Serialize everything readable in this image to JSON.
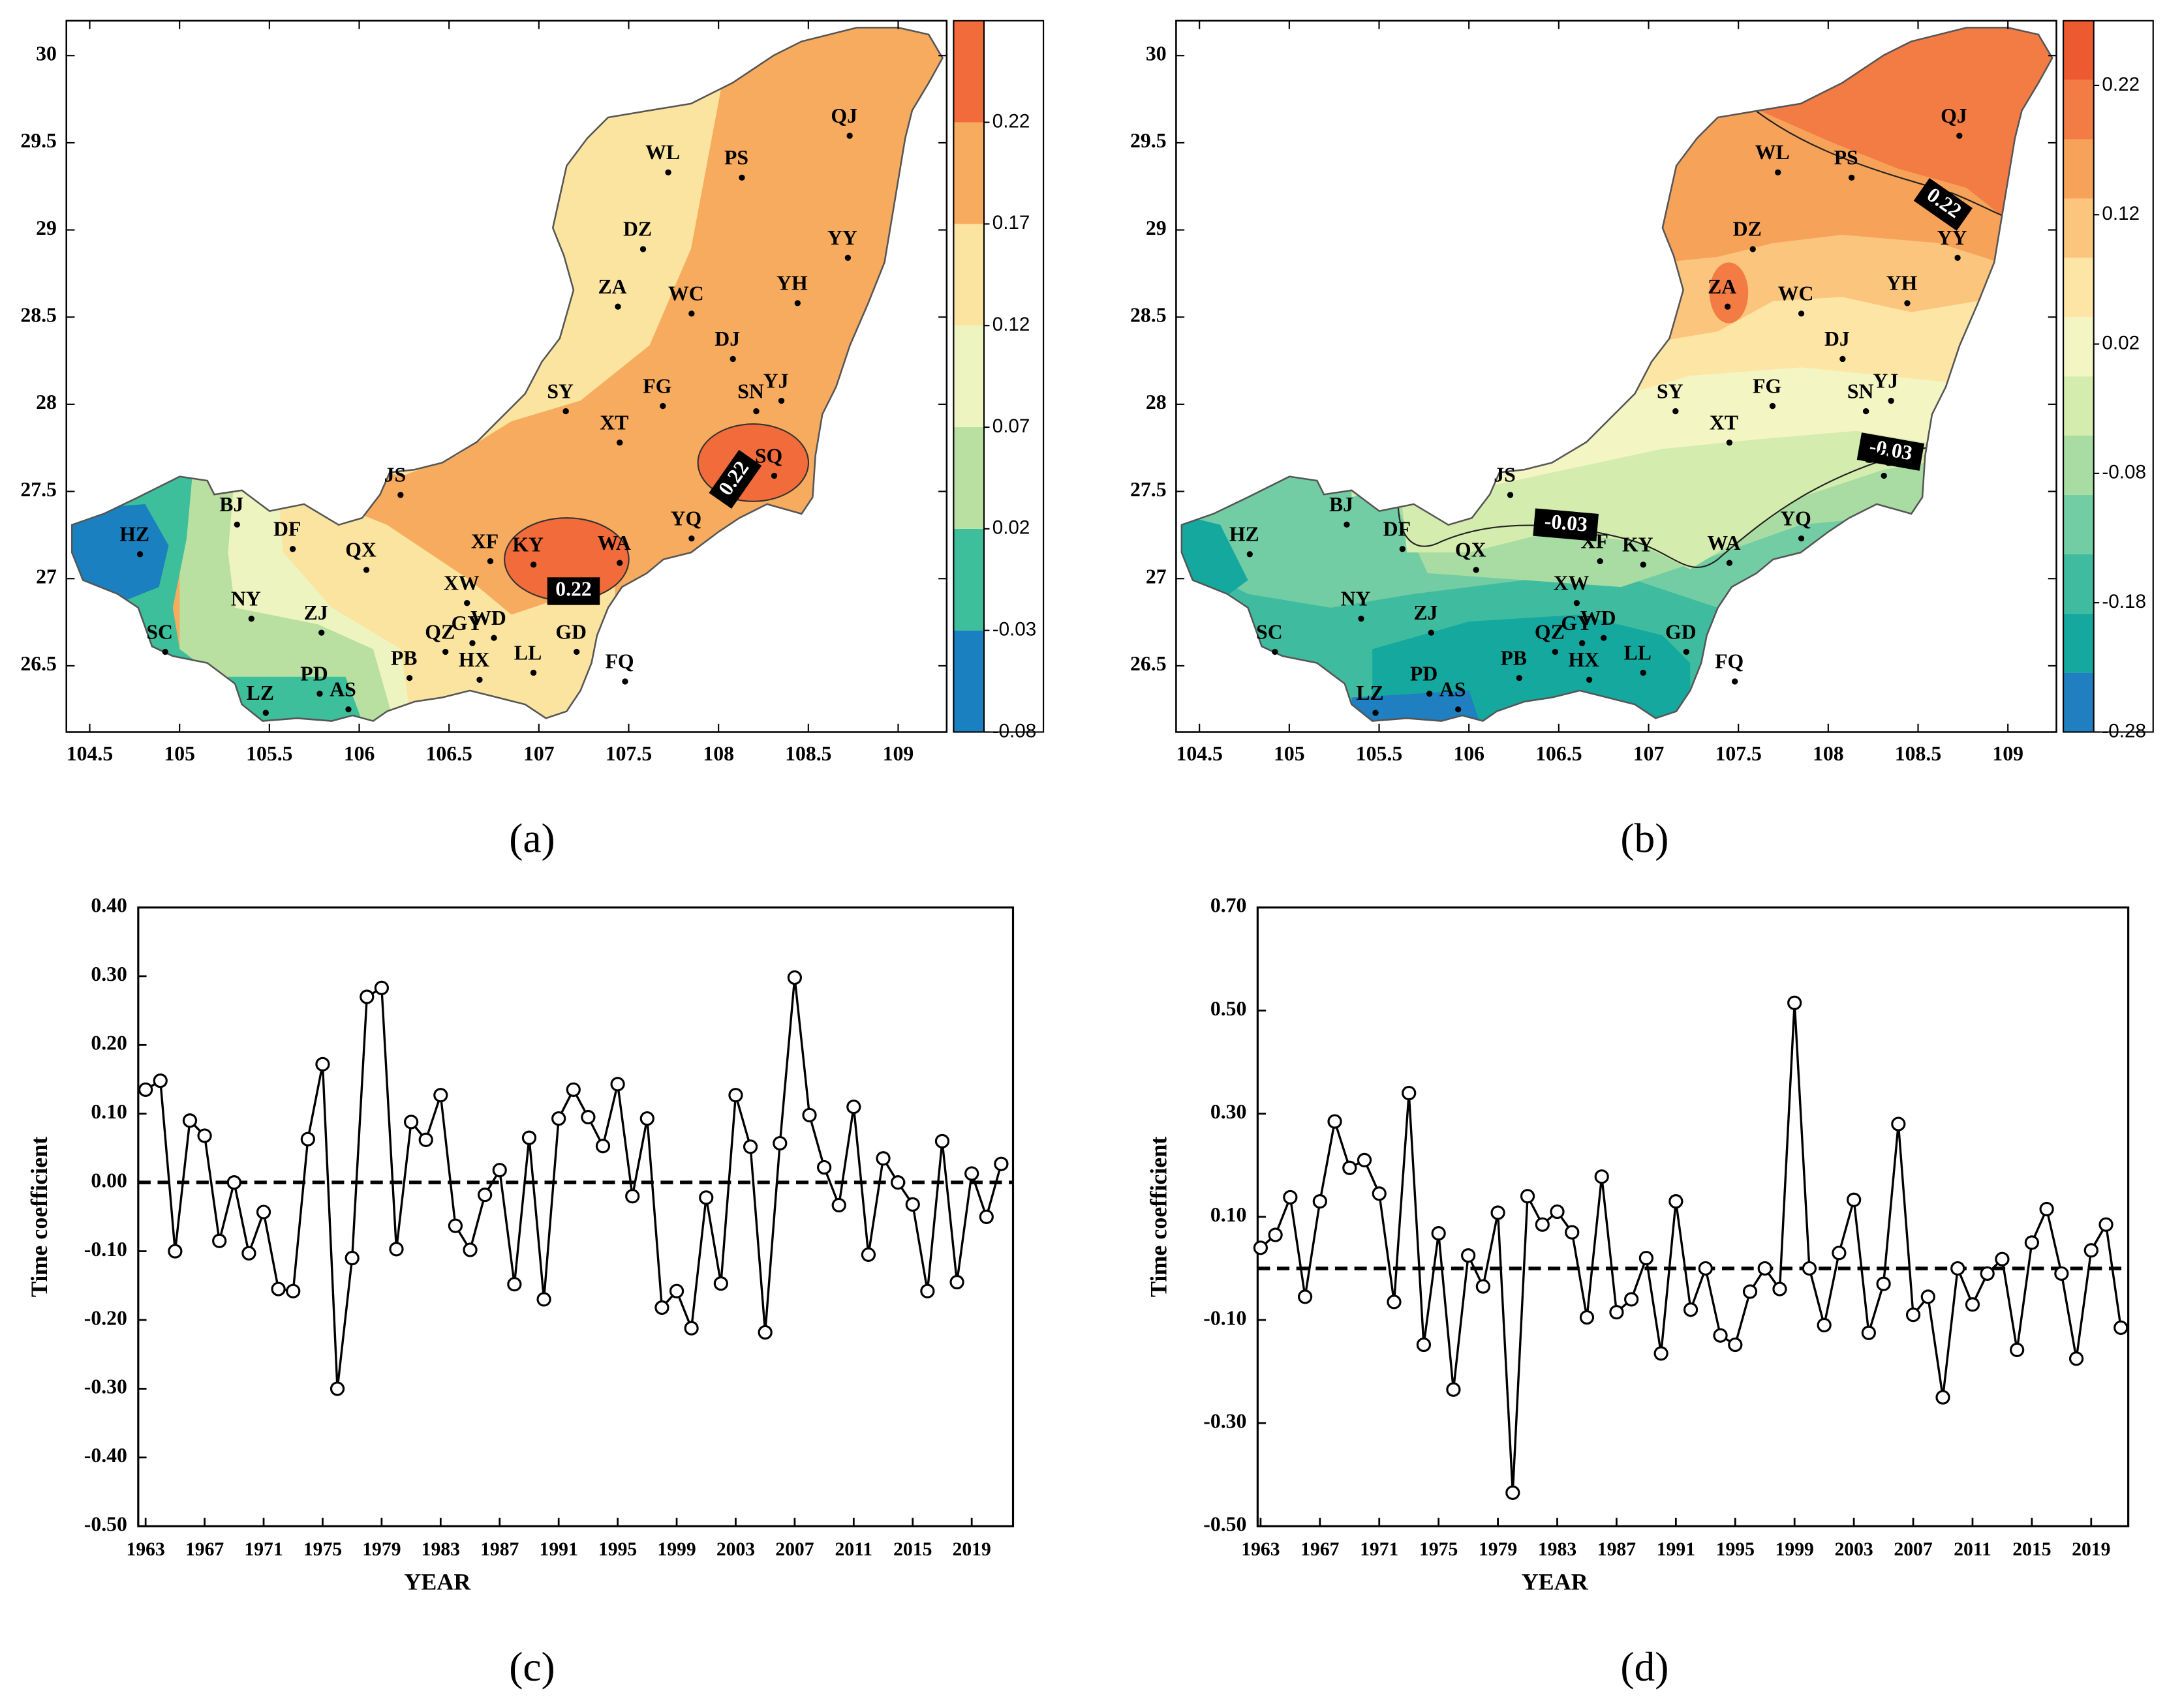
{
  "chart_data": [
    {
      "type": "map",
      "label": "(a)",
      "xlim": [
        104.37,
        109.27
      ],
      "ylim": [
        26.12,
        30.2
      ],
      "xticks": [
        104.5,
        105,
        105.5,
        106,
        106.5,
        107,
        107.5,
        108,
        108.5,
        109
      ],
      "yticks": [
        26.5,
        27,
        27.5,
        28,
        28.5,
        29,
        29.5,
        30
      ],
      "stations": [
        {
          "name": "HZ",
          "lon": 104.78,
          "lat": 27.14
        },
        {
          "name": "BJ",
          "lon": 105.32,
          "lat": 27.31
        },
        {
          "name": "DF",
          "lon": 105.63,
          "lat": 27.17
        },
        {
          "name": "SC",
          "lon": 104.92,
          "lat": 26.58
        },
        {
          "name": "NY",
          "lon": 105.4,
          "lat": 26.77
        },
        {
          "name": "ZJ",
          "lon": 105.79,
          "lat": 26.69
        },
        {
          "name": "LZ",
          "lon": 105.48,
          "lat": 26.23
        },
        {
          "name": "PD",
          "lon": 105.78,
          "lat": 26.34
        },
        {
          "name": "AS",
          "lon": 105.94,
          "lat": 26.25
        },
        {
          "name": "QX",
          "lon": 106.04,
          "lat": 27.05
        },
        {
          "name": "JS",
          "lon": 106.23,
          "lat": 27.48
        },
        {
          "name": "PB",
          "lon": 106.28,
          "lat": 26.43
        },
        {
          "name": "QZ",
          "lon": 106.48,
          "lat": 26.58
        },
        {
          "name": "GY",
          "lon": 106.63,
          "lat": 26.63
        },
        {
          "name": "WD",
          "lon": 106.75,
          "lat": 26.66
        },
        {
          "name": "XW",
          "lon": 106.6,
          "lat": 26.86
        },
        {
          "name": "HX",
          "lon": 106.67,
          "lat": 26.42
        },
        {
          "name": "LL",
          "lon": 106.97,
          "lat": 26.46
        },
        {
          "name": "XF",
          "lon": 106.73,
          "lat": 27.1
        },
        {
          "name": "KY",
          "lon": 106.97,
          "lat": 27.08
        },
        {
          "name": "WA",
          "lon": 107.45,
          "lat": 27.09
        },
        {
          "name": "GD",
          "lon": 107.21,
          "lat": 26.58
        },
        {
          "name": "FQ",
          "lon": 107.48,
          "lat": 26.41
        },
        {
          "name": "YQ",
          "lon": 107.85,
          "lat": 27.23
        },
        {
          "name": "XT",
          "lon": 107.45,
          "lat": 27.78
        },
        {
          "name": "SY",
          "lon": 107.15,
          "lat": 27.96
        },
        {
          "name": "FG",
          "lon": 107.69,
          "lat": 27.99
        },
        {
          "name": "SN",
          "lon": 108.21,
          "lat": 27.96
        },
        {
          "name": "YJ",
          "lon": 108.35,
          "lat": 28.02
        },
        {
          "name": "SQ",
          "lon": 108.31,
          "lat": 27.59
        },
        {
          "name": "DJ",
          "lon": 108.08,
          "lat": 28.26
        },
        {
          "name": "ZA",
          "lon": 107.44,
          "lat": 28.56
        },
        {
          "name": "WC",
          "lon": 107.85,
          "lat": 28.52
        },
        {
          "name": "YH",
          "lon": 108.44,
          "lat": 28.58
        },
        {
          "name": "DZ",
          "lon": 107.58,
          "lat": 28.89
        },
        {
          "name": "YY",
          "lon": 108.72,
          "lat": 28.84
        },
        {
          "name": "WL",
          "lon": 107.72,
          "lat": 29.33
        },
        {
          "name": "PS",
          "lon": 108.13,
          "lat": 29.3
        },
        {
          "name": "QJ",
          "lon": 108.73,
          "lat": 29.54
        }
      ],
      "contour_labels": [
        0.22,
        0.22
      ],
      "colorbar": {
        "lim": [
          -0.08,
          0.27
        ],
        "ticks": [
          -0.08,
          -0.03,
          0.02,
          0.07,
          0.12,
          0.17,
          0.22
        ],
        "colors": [
          "#1a80bf",
          "#3cbf9a",
          "#b9e0a0",
          "#eef4c0",
          "#fbe4a0",
          "#f7ab5e",
          "#f26b3a"
        ]
      }
    },
    {
      "type": "map",
      "label": "(b)",
      "xlim": [
        104.37,
        109.27
      ],
      "ylim": [
        26.12,
        30.2
      ],
      "xticks": [
        104.5,
        105,
        105.5,
        106,
        106.5,
        107,
        107.5,
        108,
        108.5,
        109
      ],
      "yticks": [
        26.5,
        27,
        27.5,
        28,
        28.5,
        29,
        29.5,
        30
      ],
      "stations": [
        {
          "name": "HZ",
          "lon": 104.78,
          "lat": 27.14
        },
        {
          "name": "BJ",
          "lon": 105.32,
          "lat": 27.31
        },
        {
          "name": "DF",
          "lon": 105.63,
          "lat": 27.17
        },
        {
          "name": "SC",
          "lon": 104.92,
          "lat": 26.58
        },
        {
          "name": "NY",
          "lon": 105.4,
          "lat": 26.77
        },
        {
          "name": "ZJ",
          "lon": 105.79,
          "lat": 26.69
        },
        {
          "name": "LZ",
          "lon": 105.48,
          "lat": 26.23
        },
        {
          "name": "PD",
          "lon": 105.78,
          "lat": 26.34
        },
        {
          "name": "AS",
          "lon": 105.94,
          "lat": 26.25
        },
        {
          "name": "QX",
          "lon": 106.04,
          "lat": 27.05
        },
        {
          "name": "JS",
          "lon": 106.23,
          "lat": 27.48
        },
        {
          "name": "PB",
          "lon": 106.28,
          "lat": 26.43
        },
        {
          "name": "QZ",
          "lon": 106.48,
          "lat": 26.58
        },
        {
          "name": "GY",
          "lon": 106.63,
          "lat": 26.63
        },
        {
          "name": "WD",
          "lon": 106.75,
          "lat": 26.66
        },
        {
          "name": "XW",
          "lon": 106.6,
          "lat": 26.86
        },
        {
          "name": "HX",
          "lon": 106.67,
          "lat": 26.42
        },
        {
          "name": "LL",
          "lon": 106.97,
          "lat": 26.46
        },
        {
          "name": "XF",
          "lon": 106.73,
          "lat": 27.1
        },
        {
          "name": "KY",
          "lon": 106.97,
          "lat": 27.08
        },
        {
          "name": "WA",
          "lon": 107.45,
          "lat": 27.09
        },
        {
          "name": "GD",
          "lon": 107.21,
          "lat": 26.58
        },
        {
          "name": "FQ",
          "lon": 107.48,
          "lat": 26.41
        },
        {
          "name": "YQ",
          "lon": 107.85,
          "lat": 27.23
        },
        {
          "name": "XT",
          "lon": 107.45,
          "lat": 27.78
        },
        {
          "name": "SY",
          "lon": 107.15,
          "lat": 27.96
        },
        {
          "name": "FG",
          "lon": 107.69,
          "lat": 27.99
        },
        {
          "name": "SN",
          "lon": 108.21,
          "lat": 27.96
        },
        {
          "name": "YJ",
          "lon": 108.35,
          "lat": 28.02
        },
        {
          "name": "SQ",
          "lon": 108.31,
          "lat": 27.59
        },
        {
          "name": "DJ",
          "lon": 108.08,
          "lat": 28.26
        },
        {
          "name": "ZA",
          "lon": 107.44,
          "lat": 28.56
        },
        {
          "name": "WC",
          "lon": 107.85,
          "lat": 28.52
        },
        {
          "name": "YH",
          "lon": 108.44,
          "lat": 28.58
        },
        {
          "name": "DZ",
          "lon": 107.58,
          "lat": 28.89
        },
        {
          "name": "YY",
          "lon": 108.72,
          "lat": 28.84
        },
        {
          "name": "WL",
          "lon": 107.72,
          "lat": 29.33
        },
        {
          "name": "PS",
          "lon": 108.13,
          "lat": 29.3
        },
        {
          "name": "QJ",
          "lon": 108.73,
          "lat": 29.54
        }
      ],
      "contour_labels": [
        0.22,
        -0.03,
        -0.03
      ],
      "colorbar": {
        "lim": [
          -0.28,
          0.27
        ],
        "ticks": [
          -0.28,
          -0.18,
          -0.08,
          0.02,
          0.12,
          0.22
        ],
        "colors": [
          "#1f7fc0",
          "#14a89e",
          "#3fbc9f",
          "#72cda4",
          "#a8dca2",
          "#d4ecad",
          "#f3f5c3",
          "#fde6a5",
          "#fbc57d",
          "#f7a259",
          "#f37b44",
          "#ee5a30"
        ]
      }
    },
    {
      "type": "line",
      "label": "(c)",
      "ylabel": "Time coefficient",
      "xlabel": "YEAR",
      "color": "#000000",
      "hline": 0,
      "x": [
        1963,
        1964,
        1965,
        1966,
        1967,
        1968,
        1969,
        1970,
        1971,
        1972,
        1973,
        1974,
        1975,
        1976,
        1977,
        1978,
        1979,
        1980,
        1981,
        1982,
        1983,
        1984,
        1985,
        1986,
        1987,
        1988,
        1989,
        1990,
        1991,
        1992,
        1993,
        1994,
        1995,
        1996,
        1997,
        1998,
        1999,
        2000,
        2001,
        2002,
        2003,
        2004,
        2005,
        2006,
        2007,
        2008,
        2009,
        2010,
        2011,
        2012,
        2013,
        2014,
        2015,
        2016,
        2017,
        2018,
        2019,
        2020,
        2021
      ],
      "values": [
        0.135,
        0.148,
        -0.1,
        0.09,
        0.068,
        -0.085,
        0.0,
        -0.103,
        -0.043,
        -0.155,
        -0.158,
        0.063,
        0.172,
        -0.3,
        -0.11,
        0.27,
        0.283,
        -0.097,
        0.088,
        0.062,
        0.127,
        -0.063,
        -0.098,
        -0.018,
        0.018,
        -0.148,
        0.065,
        -0.17,
        0.093,
        0.135,
        0.095,
        0.053,
        0.143,
        -0.02,
        0.093,
        -0.182,
        -0.158,
        -0.212,
        -0.022,
        -0.147,
        0.127,
        0.052,
        -0.218,
        0.057,
        0.298,
        0.098,
        0.022,
        -0.033,
        0.11,
        -0.105,
        0.035,
        0.0,
        -0.032,
        -0.158,
        0.06,
        -0.145,
        0.013,
        -0.05,
        0.027
      ],
      "xlim": [
        1962.5,
        2021.8
      ],
      "xticks": [
        1963,
        1967,
        1971,
        1975,
        1979,
        1983,
        1987,
        1991,
        1995,
        1999,
        2003,
        2007,
        2011,
        2015,
        2019
      ],
      "ylim": [
        -0.5,
        0.4
      ],
      "yticks": [
        {
          "value": 0.4,
          "label": "0.40"
        },
        {
          "value": 0.3,
          "label": "0.30"
        },
        {
          "value": 0.2,
          "label": "0.20"
        },
        {
          "value": 0.1,
          "label": "0.10"
        },
        {
          "value": 0.0,
          "label": "0.00"
        },
        {
          "value": -0.1,
          "label": "-0.10"
        },
        {
          "value": -0.2,
          "label": "-0.20"
        },
        {
          "value": -0.3,
          "label": "-0.30"
        },
        {
          "value": -0.4,
          "label": "-0.40"
        },
        {
          "value": -0.5,
          "label": "-0.50"
        }
      ]
    },
    {
      "type": "line",
      "label": "(d)",
      "ylabel": "Time coefficient",
      "xlabel": "YEAR",
      "color": "#000000",
      "hline": 0,
      "x": [
        1963,
        1964,
        1965,
        1966,
        1967,
        1968,
        1969,
        1970,
        1971,
        1972,
        1973,
        1974,
        1975,
        1976,
        1977,
        1978,
        1979,
        1980,
        1981,
        1982,
        1983,
        1984,
        1985,
        1986,
        1987,
        1988,
        1989,
        1990,
        1991,
        1992,
        1993,
        1994,
        1995,
        1996,
        1997,
        1998,
        1999,
        2000,
        2001,
        2002,
        2003,
        2004,
        2005,
        2006,
        2007,
        2008,
        2009,
        2010,
        2011,
        2012,
        2013,
        2014,
        2015,
        2016,
        2017,
        2018,
        2019,
        2020,
        2021
      ],
      "values": [
        0.04,
        0.065,
        0.138,
        -0.055,
        0.13,
        0.285,
        0.195,
        0.21,
        0.145,
        -0.065,
        0.34,
        -0.148,
        0.068,
        -0.235,
        0.025,
        -0.035,
        0.108,
        -0.435,
        0.14,
        0.085,
        0.11,
        0.07,
        -0.095,
        0.178,
        -0.085,
        -0.06,
        0.02,
        -0.165,
        0.13,
        -0.08,
        0.0,
        -0.13,
        -0.148,
        -0.045,
        0.0,
        -0.04,
        0.515,
        0.0,
        -0.11,
        0.03,
        0.133,
        -0.125,
        -0.03,
        0.28,
        -0.09,
        -0.055,
        -0.25,
        0.0,
        -0.07,
        -0.01,
        0.018,
        -0.158,
        0.05,
        0.115,
        -0.01,
        -0.175,
        0.035,
        0.085,
        -0.115
      ],
      "xlim": [
        1962.8,
        2021.5
      ],
      "xticks": [
        1963,
        1967,
        1971,
        1975,
        1979,
        1983,
        1987,
        1991,
        1995,
        1999,
        2003,
        2007,
        2011,
        2015,
        2019
      ],
      "ylim": [
        -0.5,
        0.7
      ],
      "yticks": [
        {
          "value": 0.7,
          "label": "0.70"
        },
        {
          "value": 0.5,
          "label": "0.50"
        },
        {
          "value": 0.3,
          "label": "0.30"
        },
        {
          "value": 0.1,
          "label": "0.10"
        },
        {
          "value": -0.1,
          "label": "-0.10"
        },
        {
          "value": -0.3,
          "label": "-0.30"
        },
        {
          "value": -0.5,
          "label": "-0.50"
        }
      ]
    }
  ]
}
